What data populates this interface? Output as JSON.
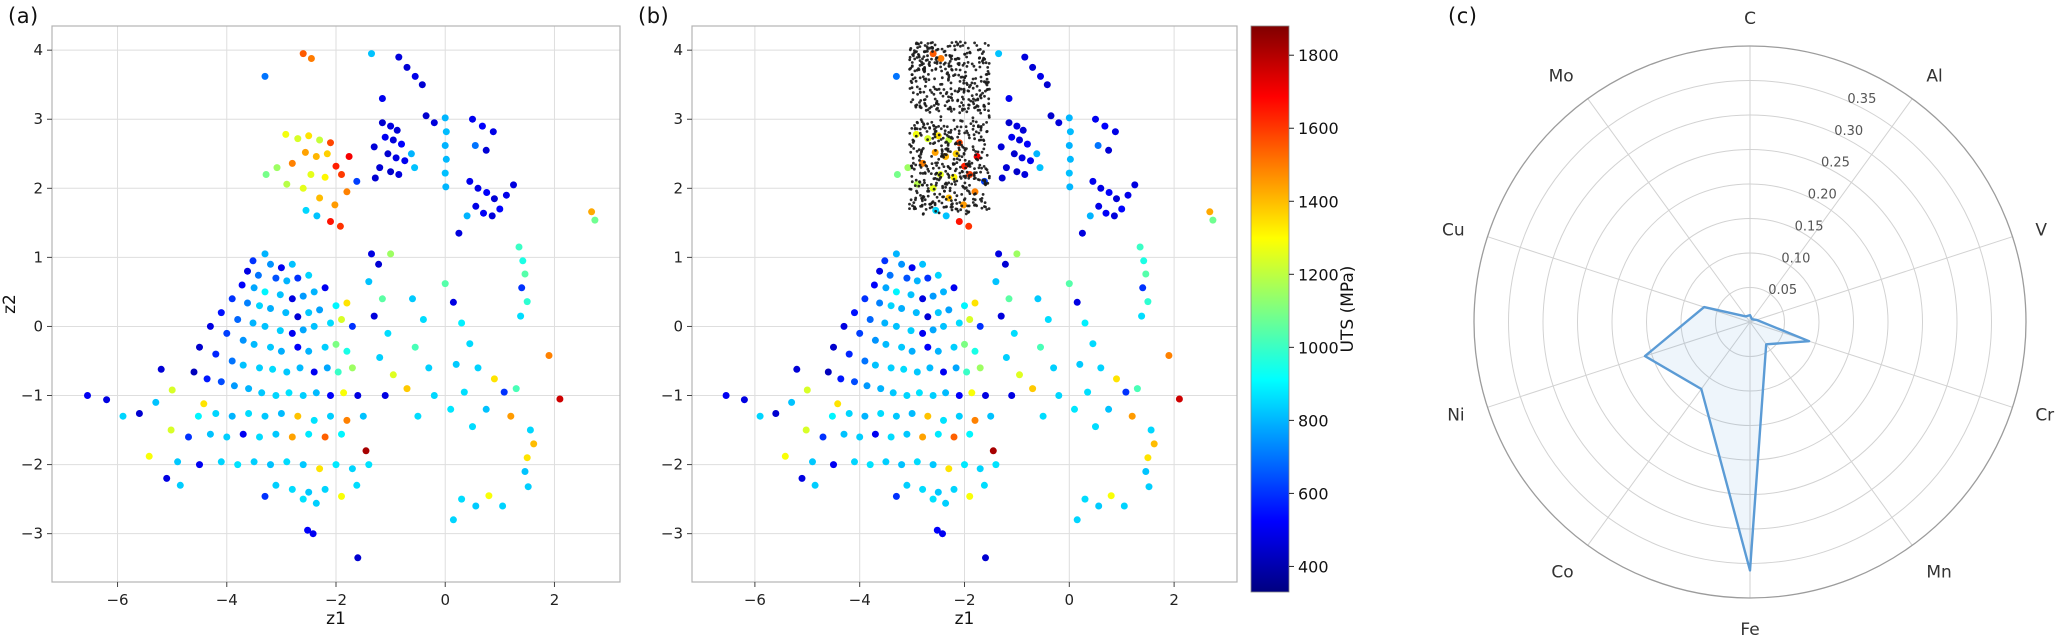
{
  "figure": {
    "panel_labels": {
      "a": "(a)",
      "b": "(b)",
      "c": "(c)"
    }
  },
  "chart_data": [
    {
      "id": "a",
      "type": "scatter",
      "title": "",
      "xlabel": "z1",
      "ylabel": "z2",
      "xlim": [
        -7.2,
        3.2
      ],
      "ylim": [
        -3.7,
        4.35
      ],
      "xticks": [
        -6,
        -4,
        -2,
        0,
        2
      ],
      "yticks": [
        -3,
        -2,
        -1,
        0,
        1,
        2,
        3,
        4
      ],
      "grid": true,
      "color_by": "UTS (MPa)",
      "points": [
        [
          -2.6,
          3.95,
          1550
        ],
        [
          -2.45,
          3.88,
          1500
        ],
        [
          -3.3,
          3.62,
          700
        ],
        [
          -1.35,
          3.95,
          820
        ],
        [
          -0.85,
          3.9,
          470
        ],
        [
          -0.7,
          3.75,
          460
        ],
        [
          -0.55,
          3.62,
          490
        ],
        [
          -0.42,
          3.5,
          455
        ],
        [
          -1.15,
          3.3,
          500
        ],
        [
          -0.35,
          3.05,
          450
        ],
        [
          -0.2,
          2.95,
          470
        ],
        [
          0,
          3.02,
          800
        ],
        [
          0.02,
          2.82,
          810
        ],
        [
          0,
          2.62,
          795
        ],
        [
          0.02,
          2.42,
          805
        ],
        [
          0,
          2.22,
          815
        ],
        [
          0.01,
          2.02,
          800
        ],
        [
          0.5,
          3,
          500
        ],
        [
          0.68,
          2.9,
          520
        ],
        [
          0.88,
          2.82,
          485
        ],
        [
          0.55,
          2.62,
          700
        ],
        [
          0.75,
          2.55,
          460
        ],
        [
          -2.92,
          2.78,
          1280
        ],
        [
          -2.7,
          2.72,
          1240
        ],
        [
          -2.5,
          2.76,
          1340
        ],
        [
          -2.3,
          2.7,
          1210
        ],
        [
          -2.1,
          2.66,
          1580
        ],
        [
          -2.56,
          2.52,
          1440
        ],
        [
          -2.36,
          2.46,
          1410
        ],
        [
          -2.16,
          2.5,
          1370
        ],
        [
          -2.8,
          2.36,
          1490
        ],
        [
          -2,
          2.32,
          1640
        ],
        [
          -1.9,
          2.2,
          1600
        ],
        [
          -2.46,
          2.2,
          1260
        ],
        [
          -2.2,
          2.16,
          1310
        ],
        [
          -3.08,
          2.3,
          1150
        ],
        [
          -3.28,
          2.2,
          1090
        ],
        [
          -2.9,
          2.06,
          1190
        ],
        [
          -2.6,
          2,
          1260
        ],
        [
          -1.76,
          2.46,
          1700
        ],
        [
          -1.62,
          2.1,
          620
        ],
        [
          -1.8,
          1.95,
          1490
        ],
        [
          -2.3,
          1.86,
          1400
        ],
        [
          -2.02,
          1.76,
          1450
        ],
        [
          -2.1,
          1.52,
          1660
        ],
        [
          -1.92,
          1.45,
          1610
        ],
        [
          -2.35,
          1.6,
          820
        ],
        [
          -2.55,
          1.68,
          850
        ],
        [
          -1.15,
          2.95,
          450
        ],
        [
          -1,
          2.9,
          478
        ],
        [
          -0.88,
          2.84,
          462
        ],
        [
          -1.1,
          2.74,
          502
        ],
        [
          -0.95,
          2.7,
          468
        ],
        [
          -0.8,
          2.64,
          520
        ],
        [
          -1.05,
          2.5,
          452
        ],
        [
          -0.9,
          2.44,
          480
        ],
        [
          -0.74,
          2.4,
          498
        ],
        [
          -1.2,
          2.3,
          458
        ],
        [
          -1,
          2.24,
          442
        ],
        [
          -0.85,
          2.2,
          472
        ],
        [
          -0.62,
          2.5,
          798
        ],
        [
          -0.56,
          2.3,
          818
        ],
        [
          -1.3,
          2.6,
          465
        ],
        [
          -1.28,
          2.15,
          455
        ],
        [
          0.45,
          2.1,
          498
        ],
        [
          0.6,
          2,
          482
        ],
        [
          0.76,
          1.94,
          518
        ],
        [
          0.9,
          1.85,
          462
        ],
        [
          0.56,
          1.74,
          488
        ],
        [
          0.7,
          1.64,
          512
        ],
        [
          0.86,
          1.6,
          470
        ],
        [
          1,
          1.7,
          528
        ],
        [
          1.12,
          1.9,
          492
        ],
        [
          0.4,
          1.6,
          798
        ],
        [
          1.25,
          2.05,
          475
        ],
        [
          2.68,
          1.66,
          1430
        ],
        [
          2.74,
          1.54,
          1080
        ],
        [
          1.35,
          1.15,
          1000
        ],
        [
          1.42,
          0.95,
          950
        ],
        [
          1.46,
          0.76,
          1040
        ],
        [
          1.4,
          0.56,
          598
        ],
        [
          1.5,
          0.36,
          980
        ],
        [
          1.38,
          0.15,
          860
        ],
        [
          1.9,
          -0.42,
          1490
        ],
        [
          2.1,
          -1.05,
          1760
        ],
        [
          1.56,
          -1.5,
          850
        ],
        [
          1.62,
          -1.7,
          1400
        ],
        [
          1.5,
          -1.9,
          1340
        ],
        [
          1.46,
          -2.1,
          822
        ],
        [
          1.52,
          -2.32,
          838
        ],
        [
          1.3,
          -0.9,
          1020
        ],
        [
          1.2,
          -1.3,
          1450
        ],
        [
          -3.3,
          1.05,
          798
        ],
        [
          -3.52,
          0.95,
          598
        ],
        [
          -3.2,
          0.9,
          748
        ],
        [
          -3,
          0.85,
          502
        ],
        [
          -2.8,
          0.9,
          818
        ],
        [
          -3.62,
          0.8,
          482
        ],
        [
          -3.42,
          0.74,
          700
        ],
        [
          -3.1,
          0.7,
          648
        ],
        [
          -2.9,
          0.66,
          798
        ],
        [
          -2.7,
          0.7,
          598
        ],
        [
          -2.5,
          0.74,
          848
        ],
        [
          -3.72,
          0.6,
          518
        ],
        [
          -3.5,
          0.56,
          778
        ],
        [
          -3.3,
          0.5,
          898
        ],
        [
          -3.02,
          0.46,
          818
        ],
        [
          -2.8,
          0.4,
          478
        ],
        [
          -2.6,
          0.44,
          758
        ],
        [
          -2.4,
          0.5,
          798
        ],
        [
          -2.2,
          0.56,
          502
        ],
        [
          -3.9,
          0.4,
          598
        ],
        [
          -3.62,
          0.34,
          718
        ],
        [
          -3.4,
          0.3,
          848
        ],
        [
          -3.2,
          0.26,
          788
        ],
        [
          -2.92,
          0.2,
          808
        ],
        [
          -2.7,
          0.14,
          462
        ],
        [
          -2.5,
          0.2,
          828
        ],
        [
          -2.3,
          0.24,
          768
        ],
        [
          -2,
          0.3,
          898
        ],
        [
          -1.8,
          0.34,
          1340
        ],
        [
          -4.1,
          0.2,
          548
        ],
        [
          -3.8,
          0.1,
          678
        ],
        [
          -3.52,
          0.05,
          798
        ],
        [
          -3.3,
          0,
          818
        ],
        [
          -3.02,
          -0.06,
          838
        ],
        [
          -2.8,
          -0.1,
          502
        ],
        [
          -2.6,
          -0.05,
          778
        ],
        [
          -2.4,
          0,
          818
        ],
        [
          -2.1,
          0.05,
          858
        ],
        [
          -1.9,
          0.1,
          1240
        ],
        [
          -1.7,
          0,
          598
        ],
        [
          -4.3,
          0,
          478
        ],
        [
          -4,
          -0.1,
          618
        ],
        [
          -3.7,
          -0.2,
          748
        ],
        [
          -3.5,
          -0.26,
          808
        ],
        [
          -3.2,
          -0.3,
          828
        ],
        [
          -3,
          -0.36,
          788
        ],
        [
          -2.7,
          -0.3,
          518
        ],
        [
          -2.5,
          -0.36,
          798
        ],
        [
          -2.2,
          -0.3,
          838
        ],
        [
          -2,
          -0.26,
          1100
        ],
        [
          -1.8,
          -0.36,
          948
        ],
        [
          -4.5,
          -0.3,
          448
        ],
        [
          -4.2,
          -0.4,
          578
        ],
        [
          -3.9,
          -0.5,
          698
        ],
        [
          -3.7,
          -0.56,
          818
        ],
        [
          -3.4,
          -0.6,
          838
        ],
        [
          -3.16,
          -0.62,
          858
        ],
        [
          -2.9,
          -0.66,
          828
        ],
        [
          -2.66,
          -0.6,
          808
        ],
        [
          -2.4,
          -0.66,
          502
        ],
        [
          -2.16,
          -0.6,
          778
        ],
        [
          -1.96,
          -0.66,
          998
        ],
        [
          -1.7,
          -0.6,
          1150
        ],
        [
          -4.6,
          -0.66,
          422
        ],
        [
          -4.36,
          -0.76,
          558
        ],
        [
          -4.1,
          -0.8,
          638
        ],
        [
          -3.86,
          -0.86,
          758
        ],
        [
          -3.6,
          -0.9,
          798
        ],
        [
          -3.36,
          -0.96,
          828
        ],
        [
          -3.1,
          -1,
          848
        ],
        [
          -2.86,
          -0.96,
          868
        ],
        [
          -2.6,
          -1,
          838
        ],
        [
          -2.36,
          -0.96,
          808
        ],
        [
          -2.1,
          -1,
          518
        ],
        [
          -1.86,
          -0.96,
          1290
        ],
        [
          -1.6,
          -1,
          478
        ],
        [
          -1.35,
          1.05,
          478
        ],
        [
          -1.22,
          0.9,
          458
        ],
        [
          -1.4,
          0.65,
          820
        ],
        [
          -1.15,
          0.4,
          1050
        ],
        [
          -1.3,
          0.15,
          470
        ],
        [
          -1.05,
          -0.1,
          860
        ],
        [
          -1.2,
          -0.45,
          840
        ],
        [
          -0.95,
          -0.7,
          1250
        ],
        [
          -1.1,
          -1,
          480
        ],
        [
          -1,
          1.05,
          1150
        ],
        [
          0.25,
          1.35,
          472
        ],
        [
          -0.6,
          0.4,
          830
        ],
        [
          -0.4,
          0.1,
          860
        ],
        [
          -0.55,
          -0.3,
          1020
        ],
        [
          -0.3,
          -0.6,
          840
        ],
        [
          -0.7,
          -0.9,
          1380
        ],
        [
          -0.2,
          -1,
          850
        ],
        [
          -0.5,
          -1.3,
          860
        ],
        [
          0,
          0.62,
          1040
        ],
        [
          0.15,
          0.35,
          480
        ],
        [
          0.3,
          0.05,
          890
        ],
        [
          0.45,
          -0.25,
          855
        ],
        [
          0.2,
          -0.55,
          830
        ],
        [
          0.6,
          -0.6,
          845
        ],
        [
          0.35,
          -0.95,
          862
        ],
        [
          0.1,
          -1.2,
          875
        ],
        [
          0.5,
          -1.45,
          858
        ],
        [
          0.75,
          -1.2,
          818
        ],
        [
          0.9,
          -0.76,
          1340
        ],
        [
          1.08,
          -0.95,
          598
        ],
        [
          -4.42,
          -1.12,
          1340
        ],
        [
          -4.52,
          -1.3,
          898
        ],
        [
          -4.2,
          -1.26,
          848
        ],
        [
          -3.9,
          -1.3,
          798
        ],
        [
          -3.6,
          -1.26,
          858
        ],
        [
          -3.3,
          -1.3,
          828
        ],
        [
          -3,
          -1.26,
          808
        ],
        [
          -2.7,
          -1.3,
          1390
        ],
        [
          -2.4,
          -1.36,
          868
        ],
        [
          -2.1,
          -1.3,
          838
        ],
        [
          -1.8,
          -1.36,
          1490
        ],
        [
          -1.5,
          -1.3,
          818
        ],
        [
          -5.02,
          -1.5,
          1240
        ],
        [
          -4.7,
          -1.6,
          598
        ],
        [
          -4.3,
          -1.56,
          818
        ],
        [
          -4,
          -1.6,
          838
        ],
        [
          -3.7,
          -1.56,
          502
        ],
        [
          -3.4,
          -1.6,
          858
        ],
        [
          -3.1,
          -1.56,
          828
        ],
        [
          -2.8,
          -1.6,
          1440
        ],
        [
          -2.5,
          -1.56,
          878
        ],
        [
          -2.2,
          -1.6,
          1540
        ],
        [
          -1.9,
          -1.56,
          898
        ],
        [
          -1.45,
          -1.8,
          1820
        ],
        [
          -5.42,
          -1.88,
          1290
        ],
        [
          -4.9,
          -1.96,
          828
        ],
        [
          -4.5,
          -2,
          502
        ],
        [
          -4.1,
          -1.96,
          848
        ],
        [
          -3.8,
          -2,
          868
        ],
        [
          -3.5,
          -1.96,
          838
        ],
        [
          -3.2,
          -2,
          818
        ],
        [
          -2.9,
          -1.96,
          858
        ],
        [
          -2.6,
          -2,
          828
        ],
        [
          -2.3,
          -2.06,
          1340
        ],
        [
          -2,
          -2,
          878
        ],
        [
          -1.7,
          -2.06,
          848
        ],
        [
          -1.4,
          -2,
          868
        ],
        [
          -3.1,
          -2.3,
          838
        ],
        [
          -2.8,
          -2.36,
          858
        ],
        [
          -2.5,
          -2.4,
          828
        ],
        [
          -2.2,
          -2.36,
          848
        ],
        [
          -2.6,
          -2.5,
          868
        ],
        [
          -2.36,
          -2.56,
          838
        ],
        [
          -3.3,
          -2.46,
          598
        ],
        [
          -1.9,
          -2.46,
          1290
        ],
        [
          -1.62,
          -2.3,
          860
        ],
        [
          -2.42,
          -3,
          502
        ],
        [
          -1.6,
          -3.35,
          452
        ],
        [
          -2.52,
          -2.95,
          518
        ],
        [
          -6.55,
          -1,
          502
        ],
        [
          -6.2,
          -1.06,
          478
        ],
        [
          -5.9,
          -1.3,
          848
        ],
        [
          -5.6,
          -1.26,
          452
        ],
        [
          -5.2,
          -0.62,
          462
        ],
        [
          -5,
          -0.92,
          1240
        ],
        [
          -5.3,
          -1.1,
          820
        ],
        [
          -4.85,
          -2.3,
          835
        ],
        [
          -5.1,
          -2.2,
          480
        ],
        [
          0.3,
          -2.5,
          858
        ],
        [
          0.56,
          -2.6,
          832
        ],
        [
          0.15,
          -2.8,
          848
        ],
        [
          0.8,
          -2.45,
          1290
        ],
        [
          1.05,
          -2.6,
          845
        ]
      ]
    },
    {
      "id": "b",
      "type": "scatter",
      "title": "",
      "xlabel": "z1",
      "ylabel": "",
      "xlim": [
        -7.2,
        3.2
      ],
      "ylim": [
        -3.7,
        4.35
      ],
      "xticks": [
        -6,
        -4,
        -2,
        0,
        2
      ],
      "yticks": [
        -3,
        -2,
        -1,
        0,
        1,
        2,
        3,
        4
      ],
      "grid": true,
      "color_by": "UTS (MPa)",
      "points": "same-as-a",
      "overlay": {
        "type": "dense_scatter",
        "description": "dense cloud of small black sampled points",
        "color": "#1a1a1a",
        "x_range": [
          -3.05,
          -1.52
        ],
        "y_range": [
          1.62,
          4.12
        ],
        "gap_y": [
          2.98,
          3.12
        ],
        "count": 800,
        "seed": 42
      }
    },
    {
      "id": "colorbar",
      "type": "colorbar",
      "label": "UTS (MPa)",
      "ticks": [
        400,
        600,
        800,
        1000,
        1200,
        1400,
        1600,
        1800
      ],
      "vmin": 330,
      "vmax": 1880,
      "colormap": "jet"
    },
    {
      "id": "c",
      "type": "radar",
      "categories": [
        "C",
        "Al",
        "V",
        "Cr",
        "Mn",
        "Fe",
        "Co",
        "Ni",
        "Cu",
        "Mo"
      ],
      "values": [
        0.01,
        0.005,
        0.01,
        0.09,
        0.04,
        0.36,
        0.12,
        0.16,
        0.07,
        0.01
      ],
      "r_ticks": [
        0.05,
        0.1,
        0.15,
        0.2,
        0.25,
        0.3,
        0.35
      ],
      "r_max": 0.4,
      "line_color": "#5b9bd5"
    }
  ]
}
